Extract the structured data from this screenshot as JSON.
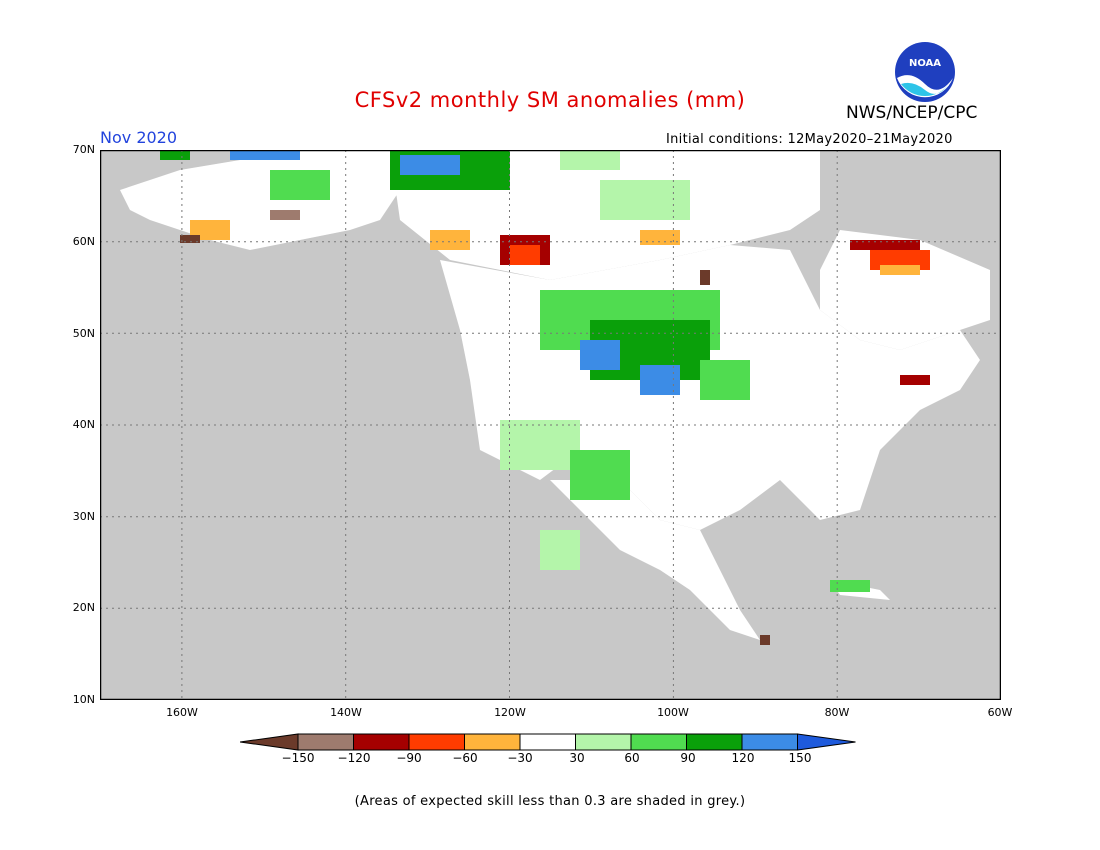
{
  "header": {
    "title": "CFSv2 monthly SM anomalies (mm)",
    "agency": "NWS/NCEP/CPC",
    "logo_text": "NOAA",
    "month": "Nov 2020",
    "initial_conditions": "Initial conditions: 12May2020–21May2020"
  },
  "map": {
    "projection": "lat-lon",
    "lon_range": [
      -170,
      -60
    ],
    "lat_range": [
      10,
      70
    ],
    "lat_labels": [
      "70N",
      "60N",
      "50N",
      "40N",
      "30N",
      "20N",
      "10N"
    ],
    "lon_labels": [
      "160W",
      "140W",
      "120W",
      "100W",
      "80W",
      "60W"
    ],
    "grid": "dotted",
    "background_color": "#c8c8c8"
  },
  "colorbar": {
    "labels": [
      "−150",
      "−120",
      "−90",
      "−60",
      "−30",
      "30",
      "60",
      "90",
      "120",
      "150"
    ],
    "colors": [
      "#6b3a2a",
      "#9e7b6e",
      "#a50000",
      "#ff3c00",
      "#ffb43c",
      "#ffffff",
      "#b4f5aa",
      "#50dc50",
      "#0aa00a",
      "#3c8ce6",
      "#1e5adc"
    ]
  },
  "footnote": "(Areas of expected skill less than 0.3 are shaded in grey.)"
}
